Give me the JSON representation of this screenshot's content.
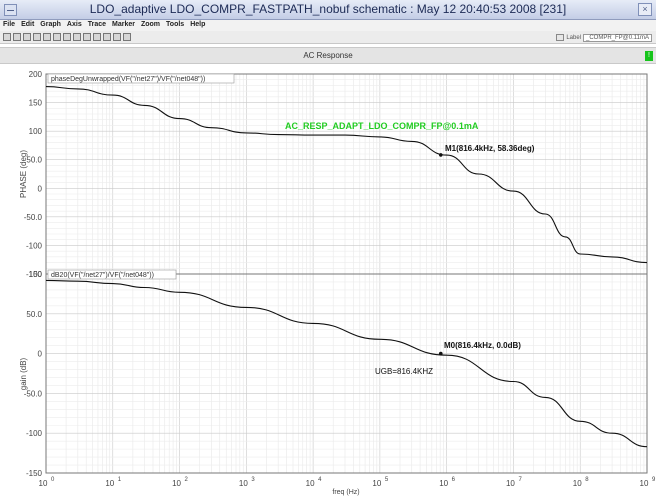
{
  "window": {
    "title": "LDO_adaptive LDO_COMPR_FASTPATH_nobuf schematic : May 12 20:40:53 2008 [231]"
  },
  "menus": [
    "File",
    "Edit",
    "Graph",
    "Axis",
    "Trace",
    "Marker",
    "Zoom",
    "Tools",
    "Help"
  ],
  "toolbar": {
    "label_caption": "Label",
    "label_value": "_COMPR_FP@0.11mA"
  },
  "header": {
    "title": "AC Response",
    "badge": "!"
  },
  "plots": [
    {
      "trace_label": "phaseDegUnwrapped(VF(\"/net27\")/VF(\"/net048\"))",
      "y_axis_label": "PHASE (deg)",
      "y_ticks": [
        "200",
        "150",
        "100",
        "50.0",
        "0",
        "-50.0",
        "-100",
        "-150"
      ],
      "title_annotation": "AC_RESP_ADAPT_LDO_COMPR_FP@0.1mA",
      "marker_label": "M1(816.4kHz, 58.36deg)"
    },
    {
      "trace_label": "dB20(VF(\"/net27\")/VF(\"/net048\"))",
      "y_axis_label": "gain (dB)",
      "y_ticks": [
        "100",
        "50.0",
        "0",
        "-50.0",
        "-100",
        "-150"
      ],
      "marker_label": "M0(816.4kHz, 0.0dB)",
      "annotation": "UGB=816.4KHZ"
    }
  ],
  "x_axis_label": "freq (Hz)",
  "x_ticks": [
    "0",
    "1",
    "2",
    "3",
    "4",
    "5",
    "6",
    "7",
    "8",
    "9"
  ],
  "x_tick_base": "10",
  "colors": {
    "trace": "#111111",
    "annotation_green": "#22cc22",
    "grid": "#d6d6d6"
  },
  "chart_data": [
    {
      "type": "line",
      "title": "AC_RESP_ADAPT_LDO_COMPR_FP@0.1mA",
      "xlabel": "freq (Hz)",
      "ylabel": "PHASE (deg)",
      "x_scale": "log",
      "xlim": [
        1,
        1000000000
      ],
      "ylim": [
        -150,
        200
      ],
      "x": [
        1,
        3,
        10,
        30,
        100,
        300,
        1000,
        3000,
        10000,
        30000,
        100000,
        300000,
        1000000,
        3000000,
        10000000,
        30000000,
        60000000,
        100000000,
        300000000,
        1000000000
      ],
      "values": [
        178,
        174,
        163,
        145,
        122,
        106,
        97,
        94,
        93,
        93,
        90,
        82,
        58,
        25,
        -5,
        -45,
        -85,
        -115,
        -120,
        -130
      ],
      "marker": {
        "x": 816400,
        "y": 58.36
      }
    },
    {
      "type": "line",
      "xlabel": "freq (Hz)",
      "ylabel": "gain (dB)",
      "x_scale": "log",
      "xlim": [
        1,
        1000000000
      ],
      "ylim": [
        -150,
        100
      ],
      "x": [
        1,
        3,
        10,
        30,
        100,
        1000,
        10000,
        100000,
        1000000,
        10000000,
        30000000,
        100000000,
        300000000,
        1000000000
      ],
      "values": [
        92,
        91,
        88,
        83,
        77,
        58,
        38,
        18,
        -2,
        -35,
        -55,
        -85,
        -100,
        -117
      ],
      "marker": {
        "x": 816400,
        "y": 0.0
      },
      "annotation": "UGB=816.4KHZ"
    }
  ]
}
